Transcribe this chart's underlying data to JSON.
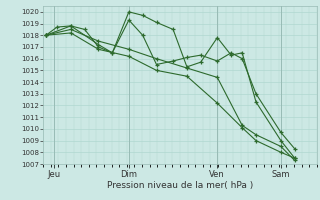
{
  "title": "",
  "xlabel": "Pression niveau de la mer( hPa )",
  "ylabel": "",
  "bg_color": "#cce8e4",
  "grid_color": "#b0d8d0",
  "line_color": "#2d6a2d",
  "marker_color": "#2d6a2d",
  "ylim": [
    1007,
    1020.5
  ],
  "yticks": [
    1007,
    1008,
    1009,
    1010,
    1011,
    1012,
    1013,
    1014,
    1015,
    1016,
    1017,
    1018,
    1019,
    1020
  ],
  "xtick_labels": [
    "Jeu",
    "Dim",
    "Ven",
    "Sam"
  ],
  "xtick_positions": [
    0.3,
    3.0,
    6.2,
    8.5
  ],
  "xlim": [
    -0.1,
    9.8
  ],
  "series": [
    {
      "x": [
        0.0,
        0.4,
        0.9,
        1.4,
        1.9,
        2.4,
        3.0,
        3.5,
        4.0,
        4.6,
        5.1,
        5.6,
        6.2,
        6.7,
        7.1,
        7.6,
        8.5,
        9.0
      ],
      "y": [
        1018.0,
        1018.7,
        1018.8,
        1018.5,
        1017.0,
        1016.5,
        1020.0,
        1019.7,
        1019.1,
        1018.5,
        1015.3,
        1015.7,
        1017.8,
        1016.3,
        1016.5,
        1012.3,
        1009.0,
        1007.5
      ],
      "marker": "+"
    },
    {
      "x": [
        0.0,
        0.9,
        1.9,
        2.4,
        3.0,
        3.5,
        4.0,
        4.6,
        5.1,
        5.6,
        6.2,
        6.7,
        7.1,
        7.6,
        8.5,
        9.0
      ],
      "y": [
        1018.0,
        1018.8,
        1017.2,
        1016.5,
        1019.3,
        1018.0,
        1015.5,
        1015.8,
        1016.1,
        1016.3,
        1015.8,
        1016.5,
        1016.0,
        1013.0,
        1009.7,
        1008.3
      ],
      "marker": "+"
    },
    {
      "x": [
        0.0,
        0.9,
        1.9,
        3.0,
        4.0,
        5.1,
        6.2,
        7.1,
        7.6,
        8.5,
        9.0
      ],
      "y": [
        1018.0,
        1018.5,
        1017.5,
        1016.8,
        1016.0,
        1015.2,
        1014.4,
        1010.3,
        1009.5,
        1008.5,
        1007.3
      ],
      "marker": "+"
    },
    {
      "x": [
        0.0,
        0.9,
        1.9,
        3.0,
        4.0,
        5.1,
        6.2,
        7.1,
        7.6,
        8.5,
        9.0
      ],
      "y": [
        1018.0,
        1018.2,
        1016.8,
        1016.2,
        1015.0,
        1014.5,
        1012.2,
        1010.1,
        1009.0,
        1008.0,
        1007.5
      ],
      "marker": "+"
    }
  ]
}
